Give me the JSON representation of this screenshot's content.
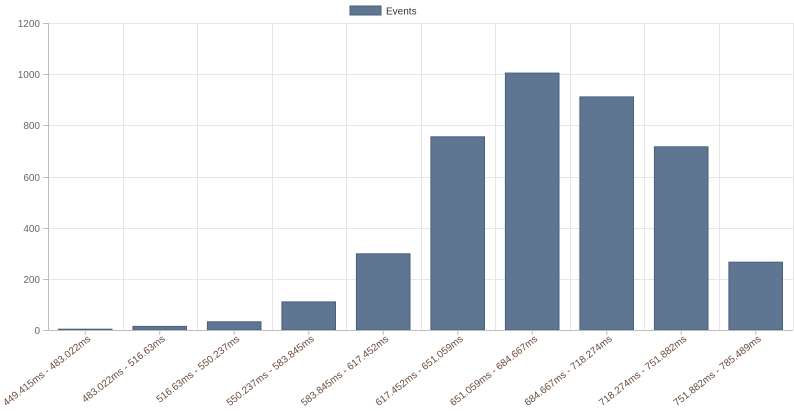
{
  "chart_data": {
    "type": "bar",
    "categories": [
      "449.415ms - 483.022ms",
      "483.022ms - 516.63ms",
      "516.63ms - 550.237ms",
      "550.237ms - 583.845ms",
      "583.845ms - 617.452ms",
      "617.452ms - 651.059ms",
      "651.059ms - 684.667ms",
      "684.667ms - 718.274ms",
      "718.274ms - 751.882ms",
      "751.882ms - 785.489ms"
    ],
    "series": [
      {
        "name": "Events",
        "values": [
          3,
          14,
          32,
          110,
          298,
          755,
          1004,
          911,
          716,
          265
        ]
      }
    ],
    "ylim": [
      0,
      1200
    ],
    "yticks": [
      0,
      200,
      400,
      600,
      800,
      1000,
      1200
    ],
    "grid": true,
    "legend": "top-center",
    "colors": {
      "bar_fill": "#5f7693",
      "bar_stroke": "#4a5f7a"
    }
  }
}
